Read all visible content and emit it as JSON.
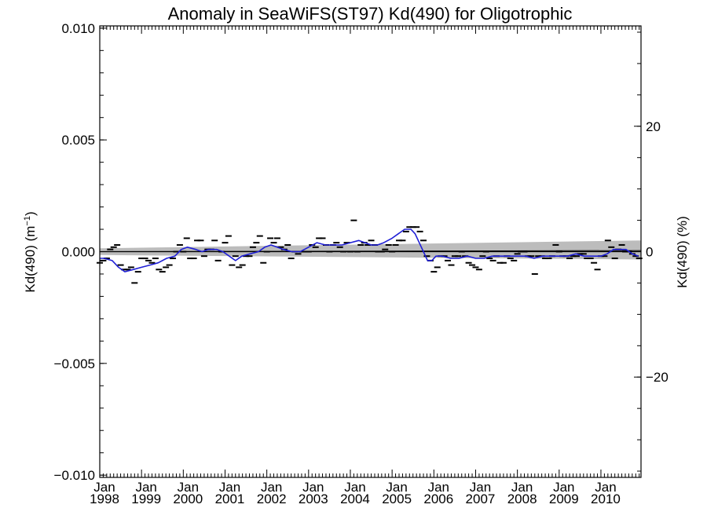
{
  "chart_data": {
    "type": "line",
    "title": "Anomaly in SeaWiFS(ST97) Kd(490) for Oligotrophic",
    "ylabel_left": {
      "main": "Kd(490) (m",
      "superscript": "−1",
      "close": ")"
    },
    "ylabel_right": "Kd(490) (%)",
    "xlim": [
      1998.0,
      2010.96
    ],
    "ylim": [
      -0.0101,
      0.0101
    ],
    "y2lim": [
      -36.0,
      36.0
    ],
    "yticks": [
      {
        "value": -0.01,
        "label": "−0.010"
      },
      {
        "value": -0.005,
        "label": "−0.005"
      },
      {
        "value": 0.0,
        "label": "0.000"
      },
      {
        "value": 0.005,
        "label": "0.005"
      },
      {
        "value": 0.01,
        "label": "0.010"
      }
    ],
    "y2ticks": [
      {
        "value": -20,
        "label": "−20"
      },
      {
        "value": 0,
        "label": "0"
      },
      {
        "value": 20,
        "label": "20"
      }
    ],
    "xticks": [
      {
        "value": 1998,
        "month": "Jan",
        "year": "1998"
      },
      {
        "value": 1999,
        "month": "Jan",
        "year": "1999"
      },
      {
        "value": 2000,
        "month": "Jan",
        "year": "2000"
      },
      {
        "value": 2001,
        "month": "Jan",
        "year": "2001"
      },
      {
        "value": 2002,
        "month": "Jan",
        "year": "2002"
      },
      {
        "value": 2003,
        "month": "Jan",
        "year": "2003"
      },
      {
        "value": 2004,
        "month": "Jan",
        "year": "2004"
      },
      {
        "value": 2005,
        "month": "Jan",
        "year": "2005"
      },
      {
        "value": 2006,
        "month": "Jan",
        "year": "2006"
      },
      {
        "value": 2007,
        "month": "Jan",
        "year": "2007"
      },
      {
        "value": 2008,
        "month": "Jan",
        "year": "2008"
      },
      {
        "value": 2009,
        "month": "Jan",
        "year": "2009"
      },
      {
        "value": 2010,
        "month": "Jan",
        "year": "2010"
      }
    ],
    "grid": false,
    "zero_line": 0.0,
    "trend_band": {
      "x": [
        1998.0,
        2010.96
      ],
      "lower": [
        -0.00015,
        -0.00035
      ],
      "upper": [
        0.00015,
        0.0005
      ]
    },
    "trend_line": {
      "x": [
        1998.0,
        2010.96
      ],
      "y": [
        0.0,
        5e-05
      ]
    },
    "series": [
      {
        "color": "#000000",
        "marker": "dash",
        "x": [
          1998.0,
          1998.083,
          1998.167,
          1998.25,
          1998.333,
          1998.417,
          1998.5,
          1998.583,
          1998.667,
          1998.75,
          1998.833,
          1998.917,
          1999.0,
          1999.083,
          1999.167,
          1999.25,
          1999.333,
          1999.417,
          1999.5,
          1999.583,
          1999.667,
          1999.75,
          1999.833,
          1999.917,
          2000.0,
          2000.083,
          2000.167,
          2000.25,
          2000.333,
          2000.417,
          2000.5,
          2000.583,
          2000.667,
          2000.75,
          2000.833,
          2000.917,
          2001.0,
          2001.083,
          2001.167,
          2001.25,
          2001.333,
          2001.417,
          2001.5,
          2001.583,
          2001.667,
          2001.75,
          2001.833,
          2001.917,
          2002.0,
          2002.083,
          2002.167,
          2002.25,
          2002.333,
          2002.417,
          2002.5,
          2002.583,
          2002.667,
          2002.75,
          2002.833,
          2002.917,
          2003.0,
          2003.083,
          2003.167,
          2003.25,
          2003.333,
          2003.417,
          2003.5,
          2003.583,
          2003.667,
          2003.75,
          2003.833,
          2003.917,
          2004.0,
          2004.083,
          2004.167,
          2004.25,
          2004.333,
          2004.417,
          2004.5,
          2004.583,
          2004.667,
          2004.75,
          2004.833,
          2004.917,
          2005.0,
          2005.083,
          2005.167,
          2005.25,
          2005.333,
          2005.417,
          2005.5,
          2005.583,
          2005.667,
          2005.75,
          2005.833,
          2005.917,
          2006.0,
          2006.083,
          2006.167,
          2006.25,
          2006.333,
          2006.417,
          2006.5,
          2006.583,
          2006.667,
          2006.75,
          2006.833,
          2006.917,
          2007.0,
          2007.083,
          2007.167,
          2007.25,
          2007.333,
          2007.417,
          2007.5,
          2007.583,
          2007.667,
          2007.75,
          2007.833,
          2007.917,
          2008.0,
          2008.083,
          2008.167,
          2008.25,
          2008.333,
          2008.417,
          2008.5,
          2008.583,
          2008.667,
          2008.75,
          2008.833,
          2008.917,
          2009.0,
          2009.083,
          2009.167,
          2009.25,
          2009.333,
          2009.417,
          2009.5,
          2009.583,
          2009.667,
          2009.75,
          2009.833,
          2009.917,
          2010.0,
          2010.083,
          2010.167,
          2010.25,
          2010.333,
          2010.417,
          2010.5,
          2010.583,
          2010.667,
          2010.75,
          2010.833,
          2010.917
        ],
        "y": [
          -0.0005,
          -0.0004,
          -0.0003,
          0.0001,
          0.0002,
          0.0003,
          -0.0006,
          -0.0008,
          -0.0008,
          -0.0007,
          -0.0014,
          -0.0009,
          -0.0003,
          -0.0003,
          -0.0004,
          -0.0005,
          -0.0003,
          -0.0008,
          -0.0009,
          -0.0007,
          -0.0006,
          -0.0003,
          0.0,
          0.0003,
          0.0,
          0.0006,
          -0.0003,
          -0.0003,
          0.0005,
          0.0005,
          -0.0002,
          0.0001,
          0.0001,
          0.0005,
          -0.0004,
          0.0,
          0.0004,
          0.0007,
          -0.0006,
          -0.0002,
          -0.0007,
          -0.0006,
          -0.0002,
          -0.0002,
          0.0002,
          0.0004,
          0.0007,
          -0.0005,
          0.0,
          0.0006,
          0.0004,
          0.0006,
          0.0002,
          0.0001,
          0.0003,
          -0.0003,
          0.0,
          -0.0001,
          0.0,
          0.0,
          0.0,
          0.0003,
          0.0002,
          0.0006,
          0.0006,
          0.0003,
          0.0,
          0.0003,
          0.0004,
          0.0002,
          0.0,
          0.0004,
          0.0,
          0.0014,
          0.0,
          0.0003,
          0.0004,
          0.0003,
          0.0005,
          0.0003,
          0.0,
          0.0,
          0.0001,
          0.0003,
          0.0,
          0.0003,
          0.0005,
          0.0005,
          0.0009,
          0.0011,
          0.0011,
          0.0011,
          0.0009,
          0.0005,
          -0.0002,
          -0.0004,
          -0.0009,
          -0.0007,
          -0.0002,
          -0.0002,
          -0.0004,
          -0.0006,
          -0.0002,
          -0.0002,
          0.0,
          -0.0002,
          -0.0005,
          -0.0006,
          -0.0007,
          -0.0008,
          -0.0002,
          0.0,
          -0.0003,
          -0.0004,
          -0.0002,
          -0.0005,
          -0.0005,
          -0.0002,
          -0.0003,
          -0.0004,
          -0.0001,
          0.0,
          0.0,
          -0.0002,
          -0.0002,
          -0.001,
          -0.0002,
          -0.0002,
          -0.0003,
          -0.0003,
          -0.0002,
          0.0003,
          0.0,
          -0.0002,
          -0.0002,
          -0.0003,
          -0.0002,
          -0.0002,
          -0.0001,
          -0.0001,
          -0.0003,
          -0.0003,
          -0.0005,
          -0.0008,
          -0.0002,
          -0.0002,
          0.0005,
          0.0002,
          -0.0003,
          0.0001,
          0.0003,
          0.0,
          0.0,
          -0.0001,
          -0.0002,
          -0.0003
        ]
      },
      {
        "color": "#1f1fd6",
        "marker": "line",
        "x": [
          1998.0,
          1998.1,
          1998.3,
          1998.45,
          1998.6,
          1998.8,
          1999.0,
          1999.2,
          1999.4,
          1999.6,
          1999.8,
          1999.95,
          2000.1,
          2000.3,
          2000.45,
          2000.6,
          2000.8,
          2000.95,
          2001.1,
          2001.25,
          2001.4,
          2001.6,
          2001.8,
          2001.95,
          2002.1,
          2002.25,
          2002.4,
          2002.6,
          2002.8,
          2003.0,
          2003.2,
          2003.4,
          2003.6,
          2003.8,
          2004.0,
          2004.2,
          2004.35,
          2004.5,
          2004.65,
          2004.8,
          2005.0,
          2005.15,
          2005.3,
          2005.45,
          2005.55,
          2005.65,
          2005.75,
          2005.85,
          2005.95,
          2006.05,
          2006.2,
          2006.4,
          2006.6,
          2006.8,
          2007.0,
          2007.2,
          2007.4,
          2007.6,
          2007.8,
          2008.0,
          2008.2,
          2008.4,
          2008.6,
          2008.8,
          2009.0,
          2009.2,
          2009.4,
          2009.6,
          2009.8,
          2010.0,
          2010.15,
          2010.3,
          2010.45,
          2010.6,
          2010.75,
          2010.9
        ],
        "y": [
          -0.0003,
          -0.0003,
          -0.0004,
          -0.0007,
          -0.0009,
          -0.0008,
          -0.0007,
          -0.0006,
          -0.0005,
          -0.0003,
          -0.0002,
          0.0001,
          0.0002,
          0.0001,
          0.0,
          0.0001,
          0.0001,
          0.0,
          -0.0002,
          -0.0004,
          -0.0002,
          -0.0001,
          0.0,
          0.0002,
          0.0003,
          0.0002,
          0.0001,
          0.0,
          0.0,
          0.0002,
          0.0004,
          0.0003,
          0.0003,
          0.0003,
          0.0004,
          0.0005,
          0.0004,
          0.0003,
          0.0003,
          0.0004,
          0.0006,
          0.0008,
          0.001,
          0.001,
          0.0008,
          0.0004,
          0.0,
          -0.0004,
          -0.0004,
          -0.0002,
          -0.0002,
          -0.0003,
          -0.0003,
          -0.0002,
          -0.0003,
          -0.0003,
          -0.0002,
          -0.0002,
          -0.0002,
          -0.0002,
          -0.0002,
          -0.0003,
          -0.0002,
          -0.0002,
          -0.0002,
          -0.0002,
          -0.0001,
          -0.0002,
          -0.0002,
          -0.0002,
          -0.0001,
          0.0001,
          0.0001,
          0.0001,
          -0.0001,
          -0.0002
        ]
      }
    ]
  }
}
